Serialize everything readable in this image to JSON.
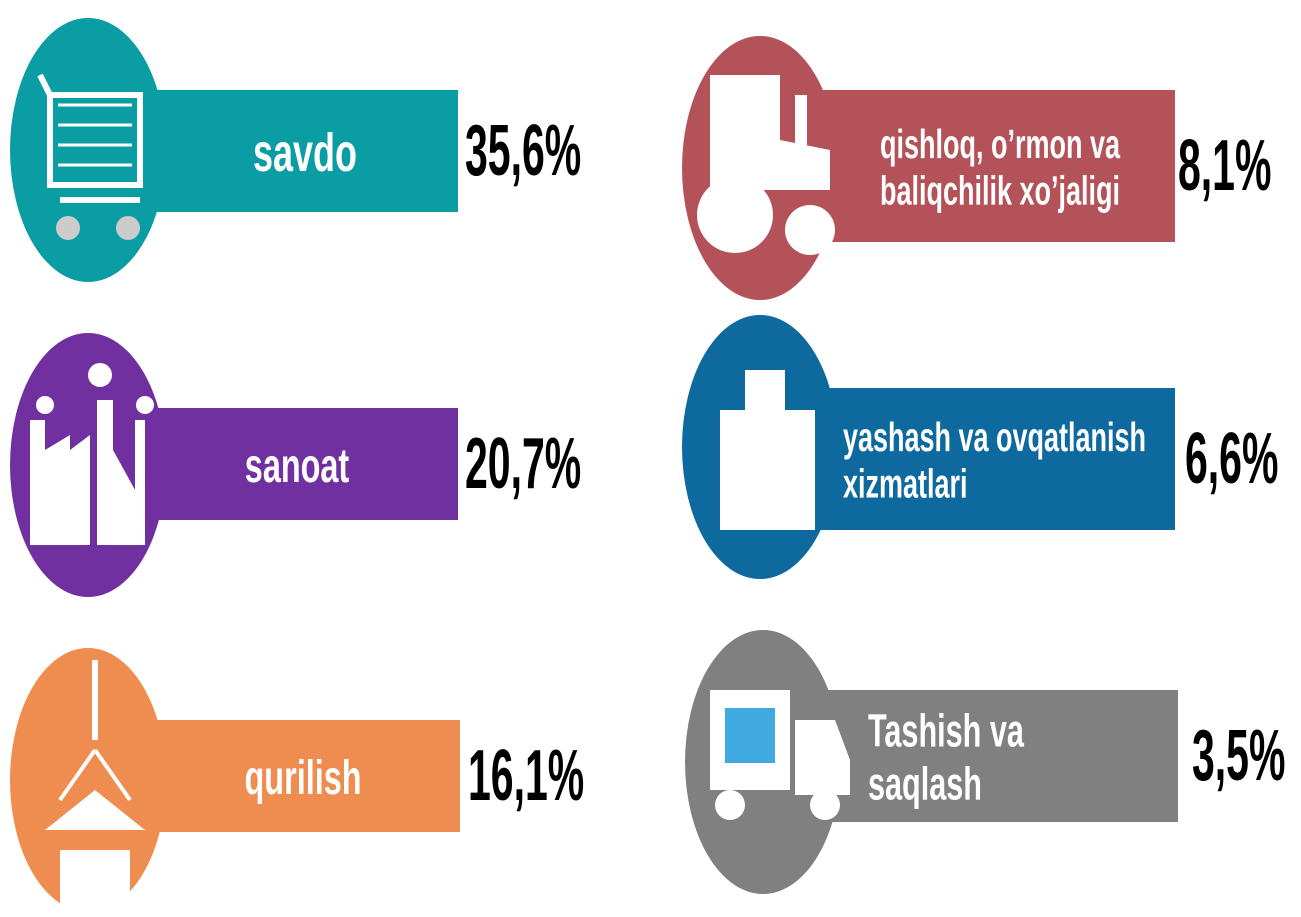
{
  "items": [
    {
      "label": [
        "savdo"
      ],
      "value": "35,6%"
    },
    {
      "label": [
        "sanoat"
      ],
      "value": "20,7%"
    },
    {
      "label": [
        "qurilish"
      ],
      "value": "16,1%"
    },
    {
      "label": [
        "qishloq, o’rmon va",
        "baliqchilik xo’jaligi"
      ],
      "value": "8,1%"
    },
    {
      "label": [
        "yashash va ovqatlanish",
        "xizmatlari"
      ],
      "value": "6,6%"
    },
    {
      "label": [
        "Tashish va",
        "saqlash"
      ],
      "value": "3,5%"
    }
  ]
}
